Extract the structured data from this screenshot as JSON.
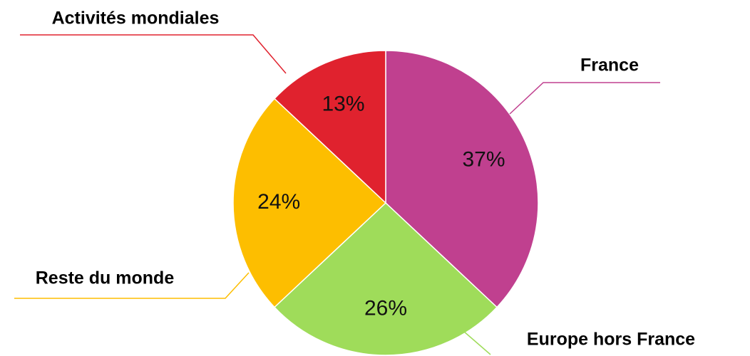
{
  "chart_data": {
    "type": "pie",
    "categories": [
      "France",
      "Europe hors France",
      "Reste du monde",
      "Activités mondiales"
    ],
    "values": [
      37,
      26,
      24,
      13
    ],
    "value_labels": [
      "37%",
      "26%",
      "24%",
      "13%"
    ],
    "colors": [
      "#c0408f",
      "#9fdc5a",
      "#fdbe00",
      "#e0222e"
    ]
  }
}
